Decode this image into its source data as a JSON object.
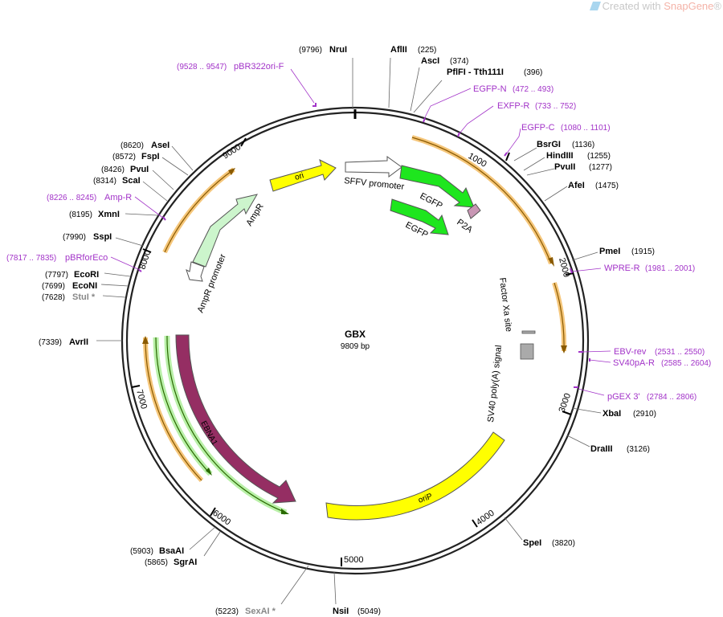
{
  "watermark": {
    "prefix": "Created with ",
    "brand": "SnapGene",
    "suffix": "®"
  },
  "plasmid": {
    "name": "GBX",
    "length_label": "9809 bp",
    "length": 9809
  },
  "tick_labels": [
    "1000",
    "2000",
    "3000",
    "4000",
    "5000",
    "6000",
    "7000",
    "8000",
    "9000"
  ],
  "enzymes": [
    {
      "name": "NruI",
      "pos": "(9796)"
    },
    {
      "name": "AflII",
      "pos": "(225)"
    },
    {
      "name": "AscI",
      "pos": "(374)"
    },
    {
      "name": "PflFI - Tth111I",
      "pos": "(396)"
    },
    {
      "name": "BsrGI",
      "pos": "(1136)"
    },
    {
      "name": "HindIII",
      "pos": "(1255)"
    },
    {
      "name": "PvuII",
      "pos": "(1277)"
    },
    {
      "name": "AfeI",
      "pos": "(1475)"
    },
    {
      "name": "PmeI",
      "pos": "(1915)"
    },
    {
      "name": "XbaI",
      "pos": "(2910)"
    },
    {
      "name": "DraIII",
      "pos": "(3126)"
    },
    {
      "name": "SpeI",
      "pos": "(3820)"
    },
    {
      "name": "NsiI",
      "pos": "(5049)"
    },
    {
      "name": "SexAI *",
      "pos": "(5223)",
      "gray": true
    },
    {
      "name": "SgrAI",
      "pos": "(5865)"
    },
    {
      "name": "BsaAI",
      "pos": "(5903)"
    },
    {
      "name": "AvrII",
      "pos": "(7339)"
    },
    {
      "name": "StuI *",
      "pos": "(7628)",
      "gray": true
    },
    {
      "name": "EcoNI",
      "pos": "(7699)"
    },
    {
      "name": "EcoRI",
      "pos": "(7797)"
    },
    {
      "name": "SspI",
      "pos": "(7990)"
    },
    {
      "name": "XmnI",
      "pos": "(8195)"
    },
    {
      "name": "ScaI",
      "pos": "(8314)"
    },
    {
      "name": "PvuI",
      "pos": "(8426)"
    },
    {
      "name": "FspI",
      "pos": "(8572)"
    },
    {
      "name": "AseI",
      "pos": "(8620)"
    }
  ],
  "primers": [
    {
      "name": "pBR322ori-F",
      "range": "(9528 .. 9547)"
    },
    {
      "name": "EGFP-N",
      "range": "(472 .. 493)"
    },
    {
      "name": "EXFP-R",
      "range": "(733 .. 752)"
    },
    {
      "name": "EGFP-C",
      "range": "(1080 .. 1101)"
    },
    {
      "name": "WPRE-R",
      "range": "(1981 .. 2001)"
    },
    {
      "name": "EBV-rev",
      "range": "(2531 .. 2550)"
    },
    {
      "name": "SV40pA-R",
      "range": "(2585 .. 2604)"
    },
    {
      "name": "pGEX 3'",
      "range": "(2784 .. 2806)"
    },
    {
      "name": "Amp-R",
      "range": "(8226 .. 8245)"
    },
    {
      "name": "pBRforEco",
      "range": "(7817 .. 7835)"
    }
  ],
  "features": [
    {
      "name": "ori",
      "color": "#ffff00"
    },
    {
      "name": "SFFV promoter",
      "color": "#ffffff"
    },
    {
      "name": "EGFP",
      "color": "#1ee61e"
    },
    {
      "name": "EGFP",
      "color": "#1ee61e"
    },
    {
      "name": "P2A",
      "color": "#c896b4"
    },
    {
      "name": "AmpR",
      "color": "#ccf5cc"
    },
    {
      "name": "AmpR promoter",
      "color": "#ffffff"
    },
    {
      "name": "Factor Xa site",
      "color": "#aaaaaa"
    },
    {
      "name": "SV40 poly(A) signal",
      "color": "#aaaaaa"
    },
    {
      "name": "oriP",
      "color": "#ffff00"
    },
    {
      "name": "EBNA1",
      "color": "#952e63"
    }
  ],
  "colors": {
    "backbone": "#222222",
    "primer": "#a233c8",
    "orf": "#f5c67a"
  }
}
